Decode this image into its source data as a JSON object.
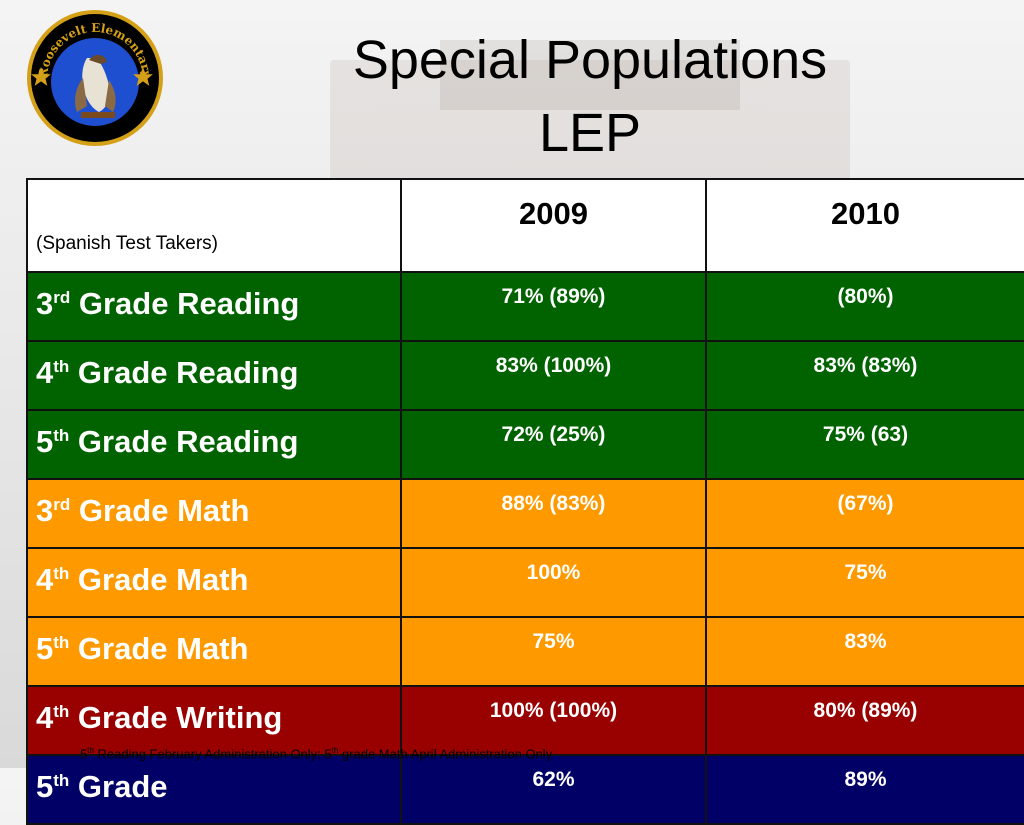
{
  "seal": {
    "text": "Roosevelt Elementary"
  },
  "title": {
    "line1": "Special Populations",
    "line2": "LEP"
  },
  "table": {
    "corner_label": "(Spanish Test Takers)",
    "years": [
      "2009",
      "2010"
    ],
    "rows": [
      {
        "num": "3",
        "sup": "rd",
        "label": "Grade Reading",
        "v2009": "71% (89%)",
        "v2010": "(80%)"
      },
      {
        "num": "4",
        "sup": "th",
        "label": "Grade Reading",
        "v2009": "83% (100%)",
        "v2010": "83% (83%)"
      },
      {
        "num": "5",
        "sup": "th",
        "label": "Grade Reading",
        "v2009": "72% (25%)",
        "v2010": "75% (63)"
      },
      {
        "num": "3",
        "sup": "rd",
        "label": "Grade Math",
        "v2009": "88% (83%)",
        "v2010": "(67%)"
      },
      {
        "num": "4",
        "sup": "th",
        "label": "Grade Math",
        "v2009": "100%",
        "v2010": "75%"
      },
      {
        "num": "5",
        "sup": "th",
        "label": "Grade Math",
        "v2009": "75%",
        "v2010": "83%"
      },
      {
        "num": "4",
        "sup": "th",
        "label": "Grade Writing",
        "v2009": "100% (100%)",
        "v2010": "80% (89%)"
      },
      {
        "num": "5",
        "sup": "th",
        "label": "Grade",
        "v2009": "62%",
        "v2010": "89%"
      }
    ]
  },
  "footnote": {
    "part1_num": "5",
    "part1_sup": "th",
    "part1_text": " Reading February Administration Only; ",
    "part2_num": "5",
    "part2_sup": "th",
    "part2_text": " grade Math April Administration Only"
  },
  "colors": {
    "reading": "#006300",
    "math": "#ff9900",
    "writing": "#990000",
    "science": "#000066"
  }
}
